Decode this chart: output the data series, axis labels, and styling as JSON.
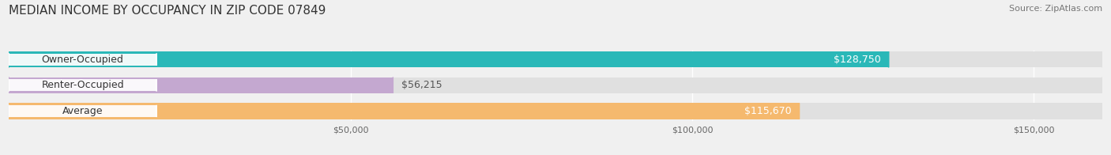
{
  "title": "MEDIAN INCOME BY OCCUPANCY IN ZIP CODE 07849",
  "source": "Source: ZipAtlas.com",
  "categories": [
    "Owner-Occupied",
    "Renter-Occupied",
    "Average"
  ],
  "values": [
    128750,
    56215,
    115670
  ],
  "bar_colors": [
    "#2ab8b8",
    "#c4a8d0",
    "#f5b96e"
  ],
  "value_labels": [
    "$128,750",
    "$56,215",
    "$115,670"
  ],
  "value_inside": [
    true,
    false,
    true
  ],
  "xlim": [
    0,
    160000
  ],
  "xticks": [
    0,
    50000,
    100000,
    150000
  ],
  "xticklabels": [
    "",
    "$50,000",
    "$100,000",
    "$150,000"
  ],
  "background_color": "#f0f0f0",
  "bar_background_color": "#e0e0e0",
  "title_fontsize": 11,
  "source_fontsize": 8,
  "label_fontsize": 9,
  "value_fontsize": 9,
  "bar_height": 0.62
}
